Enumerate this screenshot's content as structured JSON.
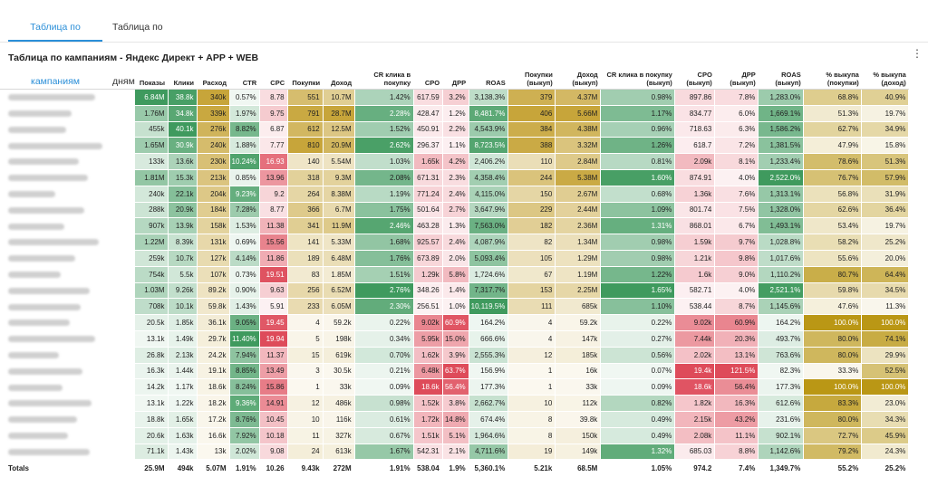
{
  "tabs": [
    {
      "label": "Таблица по кампаниям",
      "active": true
    },
    {
      "label": "Таблица по дням",
      "active": false
    }
  ],
  "title": "Таблица по кампаниям - Яндекс Директ + APP + WEB",
  "columns": [
    {
      "key": "name",
      "label": ""
    },
    {
      "key": "shows",
      "label": "Показы",
      "color": "#3f9a5e",
      "invert": false
    },
    {
      "key": "clicks",
      "label": "Клики",
      "color": "#3f9a5e",
      "invert": false
    },
    {
      "key": "spend",
      "label": "Расход",
      "color": "#c7a53a",
      "invert": false
    },
    {
      "key": "ctr",
      "label": "CTR",
      "color": "#3f9a5e",
      "invert": false
    },
    {
      "key": "cpc",
      "label": "CPC",
      "color": "#de4b5a",
      "invert": false
    },
    {
      "key": "purch",
      "label": "Покупки",
      "color": "#c7a53a",
      "invert": false
    },
    {
      "key": "income",
      "label": "Доход",
      "color": "#c7a53a",
      "invert": false
    },
    {
      "key": "cr",
      "label": "CR клика в покупку",
      "color": "#3f9a5e",
      "invert": false
    },
    {
      "key": "cpo",
      "label": "CPO",
      "color": "#de4b5a",
      "invert": false
    },
    {
      "key": "drr",
      "label": "ДРР",
      "color": "#de4b5a",
      "invert": false
    },
    {
      "key": "roas",
      "label": "ROAS",
      "color": "#3f9a5e",
      "invert": false
    },
    {
      "key": "purch_b",
      "label": "Покупки (выкуп)",
      "color": "#c7a53a",
      "invert": false
    },
    {
      "key": "income_b",
      "label": "Доход (выкуп)",
      "color": "#c7a53a",
      "invert": false
    },
    {
      "key": "cr_b",
      "label": "CR клика в покупку (выкуп)",
      "color": "#3f9a5e",
      "invert": false
    },
    {
      "key": "cpo_b",
      "label": "CPO (выкуп)",
      "color": "#de4b5a",
      "invert": false
    },
    {
      "key": "drr_b",
      "label": "ДРР (выкуп)",
      "color": "#de4b5a",
      "invert": false
    },
    {
      "key": "roas_b",
      "label": "ROAS (выкуп)",
      "color": "#3f9a5e",
      "invert": false
    },
    {
      "key": "pct_p",
      "label": "% выкупа (покупки)",
      "color": "#b8940e",
      "invert": false
    },
    {
      "key": "pct_i",
      "label": "% выкупа (доход)",
      "color": "#b8940e",
      "invert": false
    }
  ],
  "rows": [
    [
      null,
      "6.84M",
      "38.8k",
      "340k",
      "0.57%",
      "8.78",
      "551",
      "10.7M",
      "1.42%",
      "617.59",
      "3.2%",
      "3,138.3%",
      "379",
      "4.37M",
      "0.98%",
      "897.86",
      "7.8%",
      "1,283.0%",
      "68.8%",
      "40.9%"
    ],
    [
      null,
      "1.76M",
      "34.8k",
      "339k",
      "1.97%",
      "9.75",
      "791",
      "28.7M",
      "2.28%",
      "428.47",
      "1.2%",
      "8,481.7%",
      "406",
      "5.66M",
      "1.17%",
      "834.77",
      "6.0%",
      "1,669.1%",
      "51.3%",
      "19.7%"
    ],
    [
      null,
      "455k",
      "40.1k",
      "276k",
      "8.82%",
      "6.87",
      "612",
      "12.5M",
      "1.52%",
      "450.91",
      "2.2%",
      "4,543.9%",
      "384",
      "4.38M",
      "0.96%",
      "718.63",
      "6.3%",
      "1,586.2%",
      "62.7%",
      "34.9%"
    ],
    [
      null,
      "1.65M",
      "30.9k",
      "240k",
      "1.88%",
      "7.77",
      "810",
      "20.9M",
      "2.62%",
      "296.37",
      "1.1%",
      "8,723.5%",
      "388",
      "3.32M",
      "1.26%",
      "618.7",
      "7.2%",
      "1,381.5%",
      "47.9%",
      "15.8%"
    ],
    [
      null,
      "133k",
      "13.6k",
      "230k",
      "10.24%",
      "16.93",
      "140",
      "5.54M",
      "1.03%",
      "1.65k",
      "4.2%",
      "2,406.2%",
      "110",
      "2.84M",
      "0.81%",
      "2.09k",
      "8.1%",
      "1,233.4%",
      "78.6%",
      "51.3%"
    ],
    [
      null,
      "1.81M",
      "15.3k",
      "213k",
      "0.85%",
      "13.96",
      "318",
      "9.3M",
      "2.08%",
      "671.31",
      "2.3%",
      "4,358.4%",
      "244",
      "5.38M",
      "1.60%",
      "874.91",
      "4.0%",
      "2,522.0%",
      "76.7%",
      "57.9%"
    ],
    [
      null,
      "240k",
      "22.1k",
      "204k",
      "9.23%",
      "9.2",
      "264",
      "8.38M",
      "1.19%",
      "771.24",
      "2.4%",
      "4,115.0%",
      "150",
      "2.67M",
      "0.68%",
      "1.36k",
      "7.6%",
      "1,313.1%",
      "56.8%",
      "31.9%"
    ],
    [
      null,
      "288k",
      "20.9k",
      "184k",
      "7.28%",
      "8.77",
      "366",
      "6.7M",
      "1.75%",
      "501.64",
      "2.7%",
      "3,647.9%",
      "229",
      "2.44M",
      "1.09%",
      "801.74",
      "7.5%",
      "1,328.0%",
      "62.6%",
      "36.4%"
    ],
    [
      null,
      "907k",
      "13.9k",
      "158k",
      "1.53%",
      "11.38",
      "341",
      "11.9M",
      "2.46%",
      "463.28",
      "1.3%",
      "7,563.0%",
      "182",
      "2.36M",
      "1.31%",
      "868.01",
      "6.7%",
      "1,493.1%",
      "53.4%",
      "19.7%"
    ],
    [
      null,
      "1.22M",
      "8.39k",
      "131k",
      "0.69%",
      "15.56",
      "141",
      "5.33M",
      "1.68%",
      "925.57",
      "2.4%",
      "4,087.9%",
      "82",
      "1.34M",
      "0.98%",
      "1.59k",
      "9.7%",
      "1,028.8%",
      "58.2%",
      "25.2%"
    ],
    [
      null,
      "259k",
      "10.7k",
      "127k",
      "4.14%",
      "11.86",
      "189",
      "6.48M",
      "1.76%",
      "673.89",
      "2.0%",
      "5,093.4%",
      "105",
      "1.29M",
      "0.98%",
      "1.21k",
      "9.8%",
      "1,017.6%",
      "55.6%",
      "20.0%"
    ],
    [
      null,
      "754k",
      "5.5k",
      "107k",
      "0.73%",
      "19.51",
      "83",
      "1.85M",
      "1.51%",
      "1.29k",
      "5.8%",
      "1,724.6%",
      "67",
      "1.19M",
      "1.22%",
      "1.6k",
      "9.0%",
      "1,110.2%",
      "80.7%",
      "64.4%"
    ],
    [
      null,
      "1.03M",
      "9.26k",
      "89.2k",
      "0.90%",
      "9.63",
      "256",
      "6.52M",
      "2.76%",
      "348.26",
      "1.4%",
      "7,317.7%",
      "153",
      "2.25M",
      "1.65%",
      "582.71",
      "4.0%",
      "2,521.1%",
      "59.8%",
      "34.5%"
    ],
    [
      null,
      "708k",
      "10.1k",
      "59.8k",
      "1.43%",
      "5.91",
      "233",
      "6.05M",
      "2.30%",
      "256.51",
      "1.0%",
      "10,119.5%",
      "111",
      "685k",
      "1.10%",
      "538.44",
      "8.7%",
      "1,145.6%",
      "47.6%",
      "11.3%"
    ],
    [
      null,
      "20.5k",
      "1.85k",
      "36.1k",
      "9.05%",
      "19.45",
      "4",
      "59.2k",
      "0.22%",
      "9.02k",
      "60.9%",
      "164.2%",
      "4",
      "59.2k",
      "0.22%",
      "9.02k",
      "60.9%",
      "164.2%",
      "100.0%",
      "100.0%"
    ],
    [
      null,
      "13.1k",
      "1.49k",
      "29.7k",
      "11.40%",
      "19.94",
      "5",
      "198k",
      "0.34%",
      "5.95k",
      "15.0%",
      "666.6%",
      "4",
      "147k",
      "0.27%",
      "7.44k",
      "20.3%",
      "493.7%",
      "80.0%",
      "74.1%"
    ],
    [
      null,
      "26.8k",
      "2.13k",
      "24.2k",
      "7.94%",
      "11.37",
      "15",
      "619k",
      "0.70%",
      "1.62k",
      "3.9%",
      "2,555.3%",
      "12",
      "185k",
      "0.56%",
      "2.02k",
      "13.1%",
      "763.6%",
      "80.0%",
      "29.9%"
    ],
    [
      null,
      "16.3k",
      "1.44k",
      "19.1k",
      "8.85%",
      "13.49",
      "3",
      "30.5k",
      "0.21%",
      "6.48k",
      "63.7%",
      "156.9%",
      "1",
      "16k",
      "0.07%",
      "19.4k",
      "121.5%",
      "82.3%",
      "33.3%",
      "52.5%"
    ],
    [
      null,
      "14.2k",
      "1.17k",
      "18.6k",
      "8.24%",
      "15.86",
      "1",
      "33k",
      "0.09%",
      "18.6k",
      "56.4%",
      "177.3%",
      "1",
      "33k",
      "0.09%",
      "18.6k",
      "56.4%",
      "177.3%",
      "100.0%",
      "100.0%"
    ],
    [
      null,
      "13.1k",
      "1.22k",
      "18.2k",
      "9.36%",
      "14.91",
      "12",
      "486k",
      "0.98%",
      "1.52k",
      "3.8%",
      "2,662.7%",
      "10",
      "112k",
      "0.82%",
      "1.82k",
      "16.3%",
      "612.6%",
      "83.3%",
      "23.0%"
    ],
    [
      null,
      "18.8k",
      "1.65k",
      "17.2k",
      "8.76%",
      "10.45",
      "10",
      "116k",
      "0.61%",
      "1.72k",
      "14.8%",
      "674.4%",
      "8",
      "39.8k",
      "0.49%",
      "2.15k",
      "43.2%",
      "231.6%",
      "80.0%",
      "34.3%"
    ],
    [
      null,
      "20.6k",
      "1.63k",
      "16.6k",
      "7.92%",
      "10.18",
      "11",
      "327k",
      "0.67%",
      "1.51k",
      "5.1%",
      "1,964.6%",
      "8",
      "150k",
      "0.49%",
      "2.08k",
      "11.1%",
      "902.1%",
      "72.7%",
      "45.9%"
    ],
    [
      null,
      "71.1k",
      "1.43k",
      "13k",
      "2.02%",
      "9.08",
      "24",
      "613k",
      "1.67%",
      "542.31",
      "2.1%",
      "4,711.6%",
      "19",
      "149k",
      "1.32%",
      "685.03",
      "8.8%",
      "1,142.6%",
      "79.2%",
      "24.3%"
    ]
  ],
  "totals": [
    "Totals",
    "25.9M",
    "494k",
    "5.07M",
    "1.91%",
    "10.26",
    "9.43k",
    "272M",
    "1.91%",
    "538.04",
    "1.9%",
    "5,360.1%",
    "5.21k",
    "68.5M",
    "1.05%",
    "974.2",
    "7.4%",
    "1,349.7%",
    "55.2%",
    "25.2%"
  ]
}
